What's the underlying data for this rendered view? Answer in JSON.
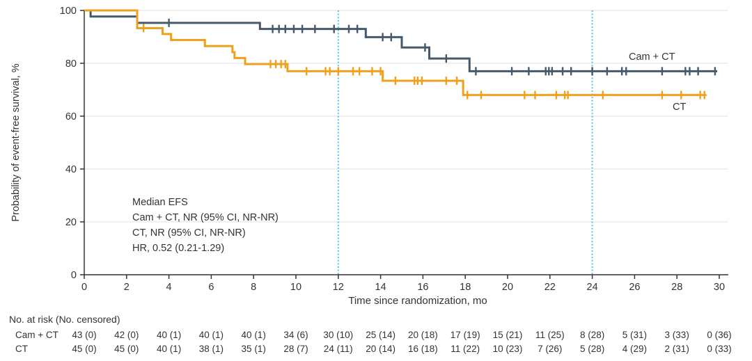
{
  "figure": {
    "y_axis_label": "Probability of event-free survival, %",
    "x_axis_label": "Time since randomization, mo",
    "annotation": {
      "line1": "Median EFS",
      "line2": "Cam + CT, NR (95% CI, NR-NR)",
      "line3": "CT, NR (95% CI, NR-NR)",
      "line4": "HR, 0.52 (0.21-1.29)"
    },
    "curve_labels": {
      "camct": "Cam + CT",
      "ct": "CT"
    }
  },
  "colors": {
    "camct": "#46596A",
    "ct": "#EFA11E",
    "refline": "#55C3EB",
    "grid": "#EAEAEA",
    "axis": "#333333",
    "text": "#333333"
  },
  "chart_data": {
    "type": "line",
    "subtype": "kaplan-meier-step",
    "xlabel": "Time since randomization, mo",
    "ylabel": "Probability of event-free survival, %",
    "xlim": [
      0,
      30
    ],
    "ylim": [
      0,
      100
    ],
    "x_ticks": [
      0,
      2,
      4,
      6,
      8,
      10,
      12,
      14,
      16,
      18,
      20,
      22,
      24,
      26,
      28,
      30
    ],
    "y_ticks": [
      0,
      20,
      40,
      60,
      80,
      100
    ],
    "grid": "horizontal-only",
    "legend_position": "curve-end-labels",
    "reference_lines_x": [
      12,
      24
    ],
    "hazard_ratio": "HR, 0.52 (0.21-1.29)",
    "series": [
      {
        "name": "Cam + CT",
        "color_key": "camct",
        "median_efs": "NR (95% CI, NR-NR)",
        "steps": [
          [
            0,
            100
          ],
          [
            0.3,
            97.7
          ],
          [
            2.5,
            95.3
          ],
          [
            8.3,
            93.0
          ],
          [
            13.3,
            89.9
          ],
          [
            15.0,
            86.0
          ],
          [
            16.3,
            81.8
          ],
          [
            18.2,
            77.0
          ]
        ],
        "end_time": 29.9,
        "censors": [
          [
            4.0,
            95.3
          ],
          [
            8.9,
            93.0
          ],
          [
            9.2,
            93.0
          ],
          [
            9.5,
            93.0
          ],
          [
            9.9,
            93.0
          ],
          [
            10.3,
            93.0
          ],
          [
            10.9,
            93.0
          ],
          [
            11.8,
            93.0
          ],
          [
            12.5,
            93.0
          ],
          [
            12.9,
            93.0
          ],
          [
            14.1,
            89.9
          ],
          [
            14.5,
            89.9
          ],
          [
            16.1,
            86.0
          ],
          [
            17.1,
            81.8
          ],
          [
            18.5,
            77.0
          ],
          [
            20.2,
            77.0
          ],
          [
            21.0,
            77.0
          ],
          [
            21.8,
            77.0
          ],
          [
            21.95,
            77.0
          ],
          [
            22.1,
            77.0
          ],
          [
            22.6,
            77.0
          ],
          [
            23.0,
            77.0
          ],
          [
            24.0,
            77.0
          ],
          [
            24.7,
            77.0
          ],
          [
            25.4,
            77.0
          ],
          [
            25.6,
            77.0
          ],
          [
            27.3,
            77.0
          ],
          [
            28.4,
            77.0
          ],
          [
            28.6,
            77.0
          ],
          [
            29.0,
            77.0
          ],
          [
            29.8,
            77.0
          ]
        ]
      },
      {
        "name": "CT",
        "color_key": "ct",
        "median_efs": "NR (95% CI, NR-NR)",
        "steps": [
          [
            0,
            100
          ],
          [
            2.5,
            93.3
          ],
          [
            3.7,
            91.1
          ],
          [
            4.1,
            88.8
          ],
          [
            5.7,
            86.5
          ],
          [
            7.0,
            84.2
          ],
          [
            7.1,
            82.0
          ],
          [
            7.6,
            79.7
          ],
          [
            9.6,
            77.0
          ],
          [
            14.1,
            73.4
          ],
          [
            17.9,
            68.0
          ]
        ],
        "end_time": 29.4,
        "censors": [
          [
            2.8,
            93.3
          ],
          [
            8.8,
            79.7
          ],
          [
            9.05,
            79.7
          ],
          [
            9.3,
            79.7
          ],
          [
            9.5,
            79.7
          ],
          [
            10.5,
            77.0
          ],
          [
            11.4,
            77.0
          ],
          [
            11.6,
            77.0
          ],
          [
            12.0,
            77.0
          ],
          [
            12.7,
            77.0
          ],
          [
            13.0,
            77.0
          ],
          [
            13.6,
            77.0
          ],
          [
            14.0,
            77.0
          ],
          [
            14.7,
            73.4
          ],
          [
            15.6,
            73.4
          ],
          [
            15.75,
            73.4
          ],
          [
            15.95,
            73.4
          ],
          [
            17.1,
            73.4
          ],
          [
            17.6,
            73.4
          ],
          [
            18.1,
            68.0
          ],
          [
            18.75,
            68.0
          ],
          [
            20.8,
            68.0
          ],
          [
            21.3,
            68.0
          ],
          [
            22.3,
            68.0
          ],
          [
            22.7,
            68.0
          ],
          [
            22.85,
            68.0
          ],
          [
            24.5,
            68.0
          ],
          [
            27.3,
            68.0
          ],
          [
            28.2,
            68.0
          ],
          [
            29.1,
            68.0
          ],
          [
            29.3,
            68.0
          ]
        ]
      }
    ]
  },
  "risk_table": {
    "header": "No. at risk (No. censored)",
    "times": [
      0,
      2,
      4,
      6,
      8,
      10,
      12,
      14,
      16,
      18,
      20,
      22,
      24,
      26,
      28,
      30
    ],
    "rows": [
      {
        "label": "Cam + CT",
        "values": [
          "43 (0)",
          "42 (0)",
          "40 (1)",
          "40 (1)",
          "40 (1)",
          "34 (6)",
          "30 (10)",
          "25 (14)",
          "20 (18)",
          "17 (19)",
          "15 (21)",
          "11 (25)",
          "8 (28)",
          "5 (31)",
          "3 (33)",
          "0 (36)"
        ]
      },
      {
        "label": "CT",
        "values": [
          "45 (0)",
          "45 (0)",
          "40 (1)",
          "38 (1)",
          "35 (1)",
          "28 (7)",
          "24 (11)",
          "20 (14)",
          "16 (18)",
          "11 (22)",
          "10 (23)",
          "7 (26)",
          "5 (28)",
          "4 (29)",
          "2 (31)",
          "0 (33)"
        ]
      }
    ]
  }
}
